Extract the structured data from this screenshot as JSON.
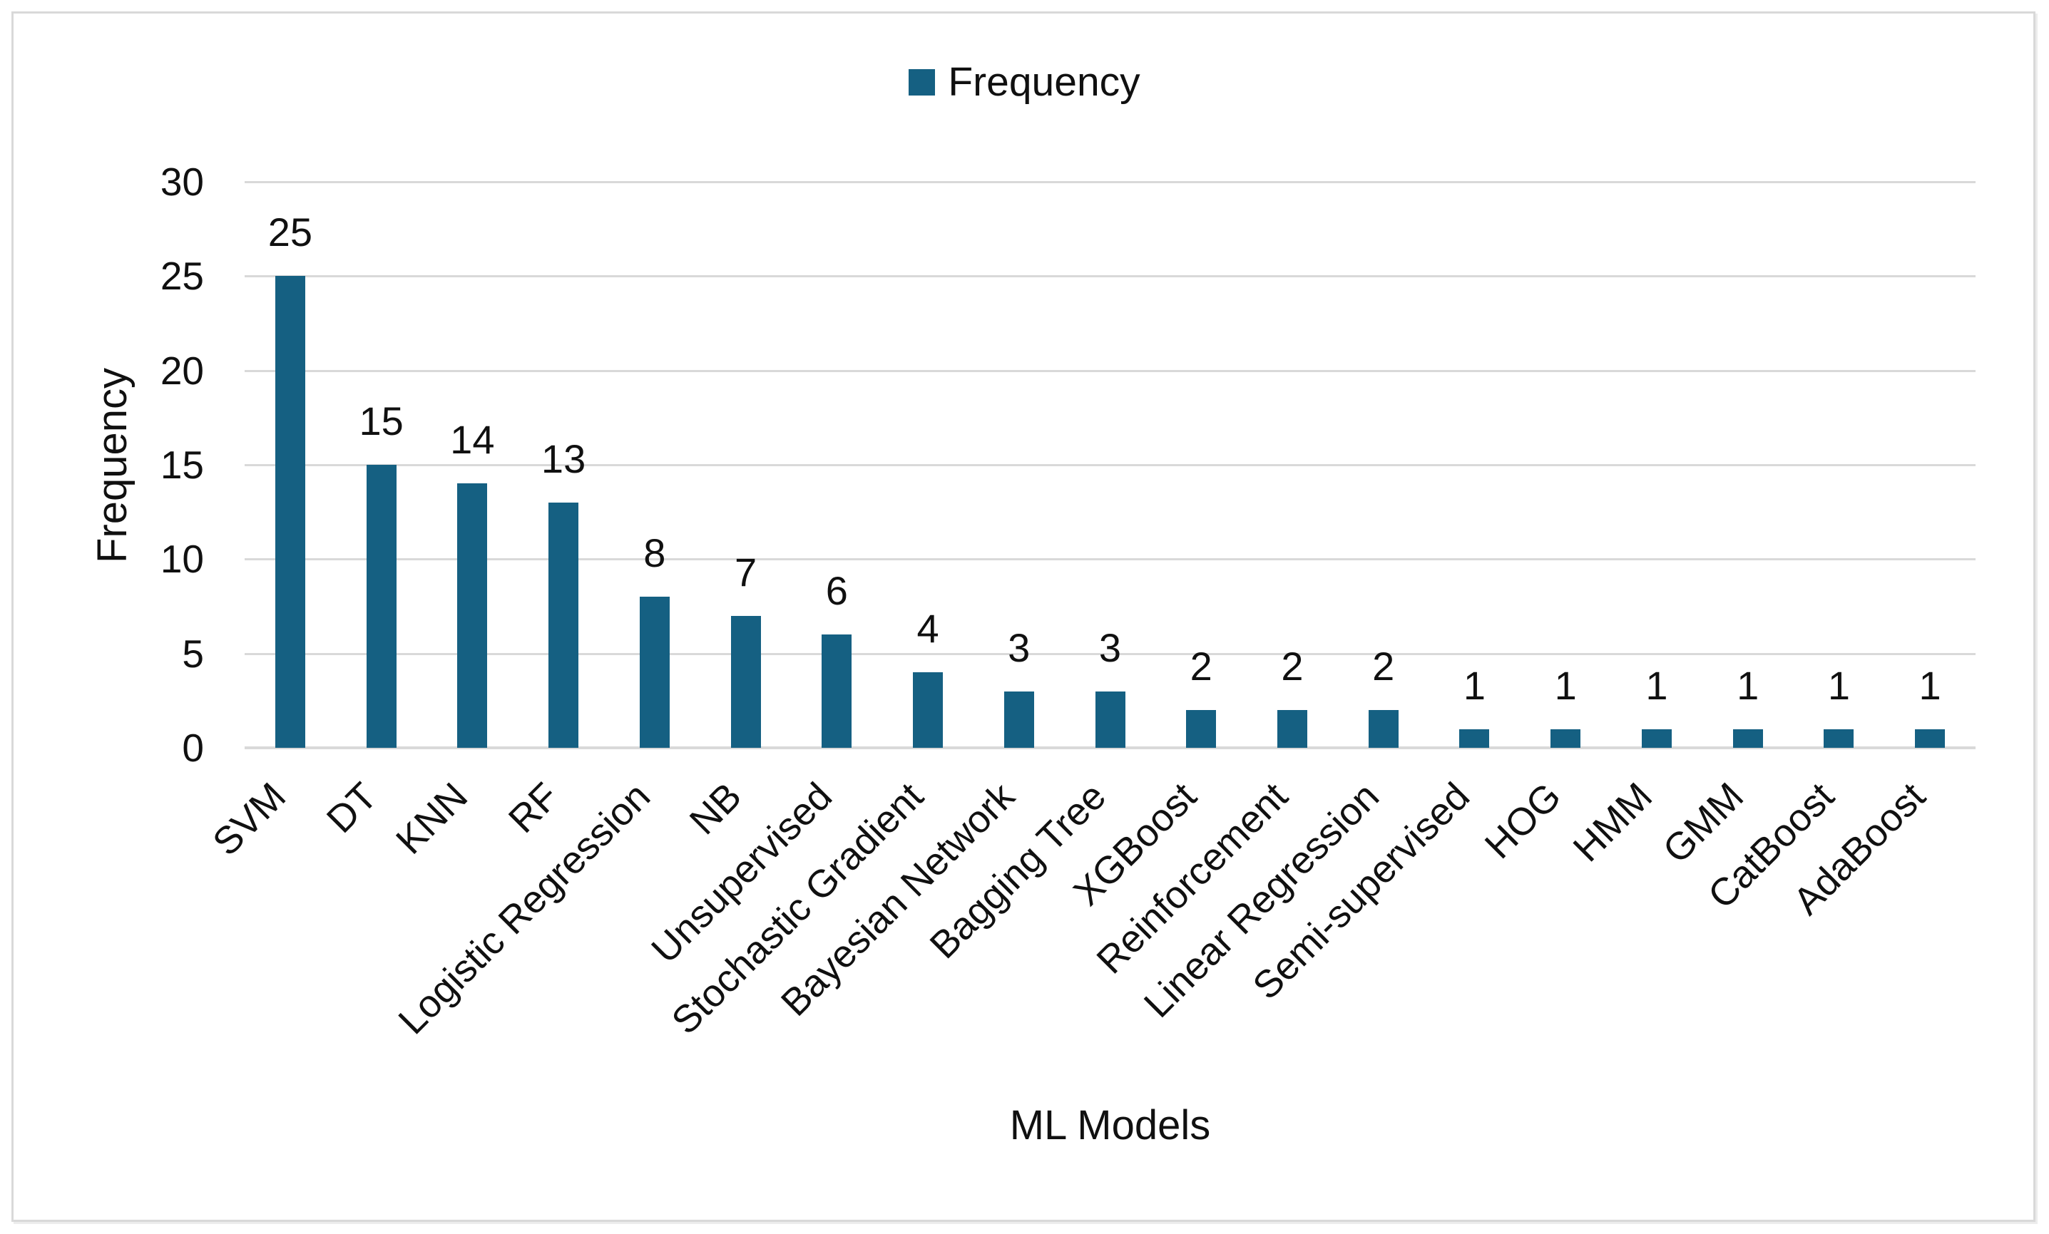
{
  "legend": {
    "label": "Frequency"
  },
  "axes": {
    "x_title": "ML Models",
    "y_title": "Frequency"
  },
  "chart_data": {
    "type": "bar",
    "title": "",
    "series_name": "Frequency",
    "categories": [
      "SVM",
      "DT",
      "KNN",
      "RF",
      "Logistic Regression",
      "NB",
      "Unsupervised",
      "Stochastic Gradient",
      "Bayesian Network",
      "Bagging Tree",
      "XGBoost",
      "Reinforcement",
      "Linear Regression",
      "Semi-supervised",
      "HOG",
      "HMM",
      "GMM",
      "CatBoost",
      "AdaBoost"
    ],
    "values": [
      25,
      15,
      14,
      13,
      8,
      7,
      6,
      4,
      3,
      3,
      2,
      2,
      2,
      1,
      1,
      1,
      1,
      1,
      1
    ],
    "xlabel": "ML Models",
    "ylabel": "Frequency",
    "ylim": [
      0,
      30
    ],
    "yticks": [
      0,
      5,
      10,
      15,
      20,
      25,
      30
    ],
    "grid": "horizontal",
    "legend_position": "top-center",
    "data_labels": true,
    "category_label_rotation_deg": 45,
    "colors": {
      "bar": "#156082",
      "gridline": "#d9d9d9",
      "text": "#101010",
      "frame_border": "#d9d9d9",
      "background": "#ffffff"
    }
  }
}
